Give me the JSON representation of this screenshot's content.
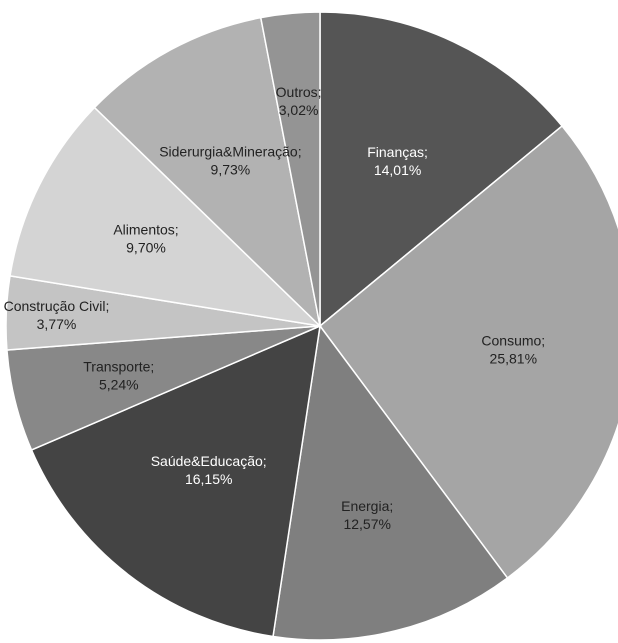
{
  "chart_data": {
    "type": "pie",
    "title": "",
    "legend": "none",
    "slices": [
      {
        "name": "Finanças",
        "value": 14.01,
        "label_name": "Finanças;",
        "label_value": "14,01%",
        "color": "#555555",
        "text_color": "#ffffff"
      },
      {
        "name": "Consumo",
        "value": 25.81,
        "label_name": "Consumo;",
        "label_value": "25,81%",
        "color": "#a5a5a5",
        "text_color": "#222222"
      },
      {
        "name": "Energia",
        "value": 12.57,
        "label_name": "Energia;",
        "label_value": "12,57%",
        "color": "#7f7f7f",
        "text_color": "#222222"
      },
      {
        "name": "Saúde&Educação",
        "value": 16.15,
        "label_name": "Saúde&Educação;",
        "label_value": "16,15%",
        "color": "#444444",
        "text_color": "#ffffff"
      },
      {
        "name": "Transporte",
        "value": 5.24,
        "label_name": "Transporte;",
        "label_value": "5,24%",
        "color": "#888888",
        "text_color": "#222222"
      },
      {
        "name": "Construção Civil",
        "value": 3.77,
        "label_name": "Construção Civil;",
        "label_value": "3,77%",
        "color": "#c4c4c4",
        "text_color": "#222222"
      },
      {
        "name": "Alimentos",
        "value": 9.7,
        "label_name": "Alimentos;",
        "label_value": "9,70%",
        "color": "#d4d4d4",
        "text_color": "#222222"
      },
      {
        "name": "Siderurgia&Mineração",
        "value": 9.73,
        "label_name": "Siderurgia&Mineração;",
        "label_value": "9,73%",
        "color": "#b2b2b2",
        "text_color": "#222222"
      },
      {
        "name": "Outros",
        "value": 3.02,
        "label_name": "Outros;",
        "label_value": "3,02%",
        "color": "#949494",
        "text_color": "#222222"
      }
    ]
  }
}
